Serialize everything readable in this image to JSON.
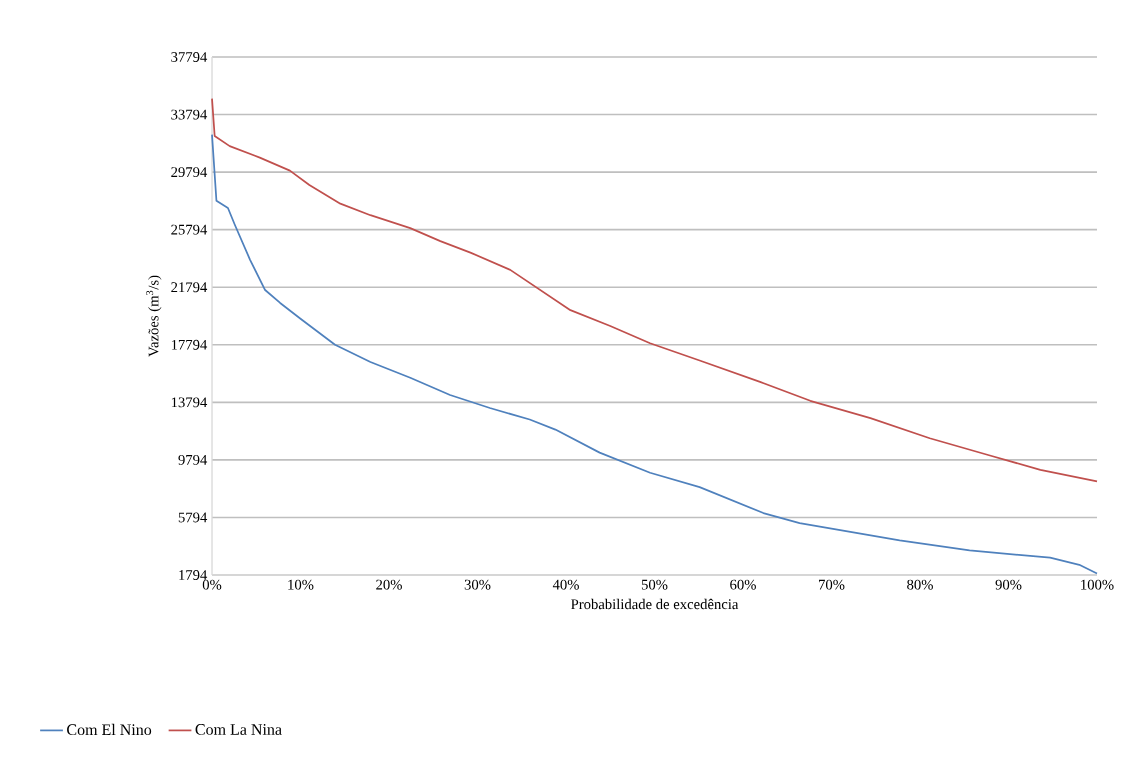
{
  "chart_data": {
    "type": "line",
    "xlabel": "Probabilidade de excedência",
    "ylabel": "Vazões (m$^{3}$/s)",
    "xlim": [
      0,
      100
    ],
    "ylim": [
      1794,
      37794
    ],
    "xticks": [
      {
        "value": 0,
        "label": "0%"
      },
      {
        "value": 10,
        "label": "10%"
      },
      {
        "value": 20,
        "label": "20%"
      },
      {
        "value": 30,
        "label": "30%"
      },
      {
        "value": 40,
        "label": "40%"
      },
      {
        "value": 50,
        "label": "50%"
      },
      {
        "value": 60,
        "label": "60%"
      },
      {
        "value": 70,
        "label": "70%"
      },
      {
        "value": 80,
        "label": "80%"
      },
      {
        "value": 90,
        "label": "90%"
      },
      {
        "value": 100,
        "label": "100%"
      }
    ],
    "yticks": [
      1794,
      5794,
      9794,
      13794,
      17794,
      21794,
      25794,
      29794,
      33794,
      37794
    ],
    "grid": "y",
    "legend": "bottom left",
    "marker": "none",
    "line_style": "solid",
    "series": [
      {
        "name": "Com El Nino",
        "color": "#4f81bd",
        "x": [
          0,
          0.5,
          1.8,
          2.6,
          4.3,
          6,
          7.7,
          10,
          13.9,
          17.9,
          22.4,
          26.9,
          31.4,
          35.9,
          38.8,
          43.8,
          49.5,
          55.1,
          62.3,
          66.4,
          77.7,
          85.6,
          94.7,
          98,
          100
        ],
        "values": [
          32400,
          27800,
          27300,
          26100,
          23700,
          21600,
          20700,
          19600,
          17800,
          16600,
          15500,
          14300,
          13400,
          12600,
          11900,
          10300,
          8900,
          7900,
          6100,
          5400,
          4200,
          3500,
          3000,
          2500,
          1900
        ]
      },
      {
        "name": "Com La Nina",
        "color": "#c0504d",
        "x": [
          0,
          0.3,
          2,
          5.4,
          8.8,
          11,
          14.5,
          17.9,
          22.4,
          25.8,
          29.2,
          33.7,
          37.1,
          40.5,
          45,
          49.5,
          55.1,
          62,
          67.6,
          74.4,
          81.1,
          87.9,
          93.6,
          100
        ],
        "values": [
          34900,
          32300,
          31600,
          30800,
          29900,
          28900,
          27600,
          26800,
          25900,
          25000,
          24200,
          23000,
          21600,
          20200,
          19100,
          17900,
          16700,
          15200,
          13900,
          12700,
          11300,
          10100,
          9100,
          8300
        ]
      }
    ]
  }
}
